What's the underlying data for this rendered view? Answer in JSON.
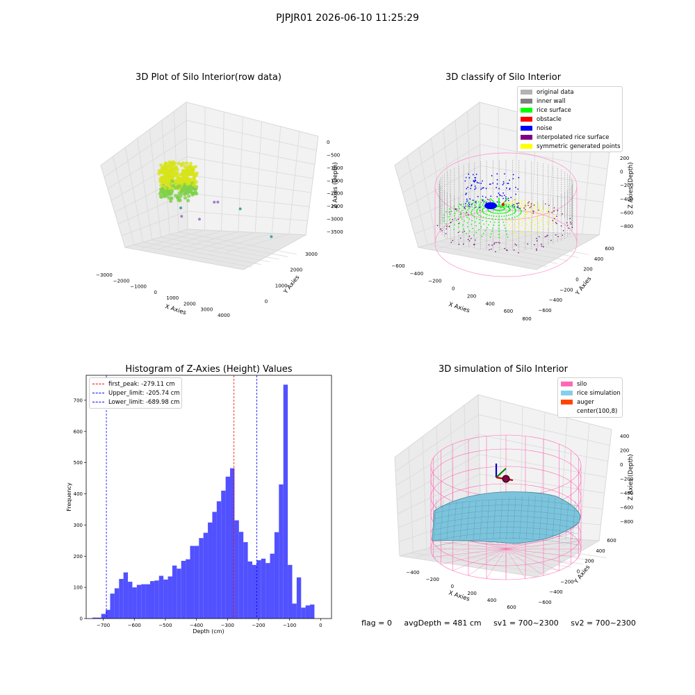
{
  "suptitle": "PJPJR01 2026-06-10 11:25:29",
  "footer": {
    "flag": "flag = 0",
    "avg_depth": "avgDepth = 481 cm",
    "sv1": "sv1 = 700~2300",
    "sv2": "sv2 = 700~2300"
  },
  "chart_data": [
    {
      "type": "scatter",
      "title": "3D Plot of Silo Interior(row data)",
      "xlabel": "X Axies",
      "ylabel": "Y Axies",
      "zlabel": "Z Axies (Depth)",
      "x_ticks": [
        "−3000",
        "−2000",
        "−1000",
        "0",
        "1000",
        "2000",
        "3000",
        "4000"
      ],
      "y_ticks": [
        "0",
        "1000",
        "2000",
        "3000"
      ],
      "z_ticks": [
        "0",
        "−500",
        "−1000",
        "−1500",
        "−2000",
        "−2500",
        "−3000",
        "−3500"
      ],
      "colors": {
        "cluster": "#d7e31a",
        "cluster_low": "#7fd14a",
        "outlier_1": "#a37fc9",
        "outlier_2": "#3fa7a0"
      },
      "outliers": [
        {
          "x": 100,
          "y": 2800,
          "z": -2400
        },
        {
          "x": 300,
          "y": 3000,
          "z": -2100
        },
        {
          "x": -2300,
          "y": 0,
          "z": -3200
        },
        {
          "x": 2700,
          "y": 600,
          "z": -3400
        },
        {
          "x": 800,
          "y": 1800,
          "z": -2200
        },
        {
          "x": 1600,
          "y": 1200,
          "z": -2500
        },
        {
          "x": 2000,
          "y": 2600,
          "z": -1900
        }
      ]
    },
    {
      "type": "scatter",
      "title": "3D classify of Silo Interior",
      "xlabel": "X Axies",
      "ylabel": "Y Axies",
      "zlabel": "Z Axies (Depth)",
      "x_ticks": [
        "−600",
        "−400",
        "−200",
        "0",
        "200",
        "400",
        "600",
        "800"
      ],
      "y_ticks": [
        "−600",
        "−400",
        "−200",
        "0",
        "200",
        "400",
        "600"
      ],
      "z_ticks": [
        "200",
        "0",
        "−200",
        "−400",
        "−600",
        "−800"
      ],
      "legend": [
        {
          "label": "original data",
          "color": "#b3b3b3"
        },
        {
          "label": "inner wall",
          "color": "#808080"
        },
        {
          "label": "rice surface",
          "color": "#00ff00"
        },
        {
          "label": "obstacle",
          "color": "#ff0000"
        },
        {
          "label": "noise",
          "color": "#0000ff"
        },
        {
          "label": "interpolated rice surface",
          "color": "#800080"
        },
        {
          "label": "symmetric generated points",
          "color": "#ffff00"
        }
      ],
      "cylinder_color": "#ff8ec8"
    },
    {
      "type": "bar",
      "title": "Histogram of Z-Axies (Height) Values",
      "xlabel": "Depth (cm)",
      "ylabel": "Frequency",
      "xlim": [
        -755,
        35
      ],
      "ylim": [
        0,
        780
      ],
      "x_ticks": [
        -700,
        -600,
        -500,
        -400,
        -300,
        -200,
        -100,
        0
      ],
      "y_ticks": [
        0,
        100,
        200,
        300,
        400,
        500,
        600,
        700
      ],
      "bin_start": -735,
      "bin_width": 14.3,
      "values": [
        3,
        3,
        15,
        28,
        80,
        97,
        127,
        148,
        118,
        100,
        108,
        110,
        110,
        120,
        122,
        137,
        125,
        135,
        170,
        160,
        185,
        190,
        233,
        233,
        258,
        275,
        308,
        342,
        376,
        410,
        455,
        482,
        315,
        278,
        245,
        183,
        172,
        187,
        192,
        178,
        208,
        277,
        430,
        750,
        172,
        48,
        132,
        35,
        42,
        45
      ],
      "bar_color": "#5151ff",
      "lines": [
        {
          "label": "first_peak: -279.11 cm",
          "value": -279.11,
          "color": "#ff0000"
        },
        {
          "label": "Upper_limit: -205.74 cm",
          "value": -205.74,
          "color": "#0000ff"
        },
        {
          "label": "Lower_limit: -689.98 cm",
          "value": -689.98,
          "color": "#0000ff"
        }
      ]
    },
    {
      "type": "area",
      "title": "3D simulation of Silo Interior",
      "xlabel": "X Axies",
      "ylabel": "Y Axies",
      "zlabel": "Z Axies (Depth)",
      "x_ticks": [
        "−400",
        "−200",
        "0",
        "200",
        "400",
        "600"
      ],
      "y_ticks": [
        "−600",
        "−400",
        "−200",
        "0",
        "200",
        "400",
        "600"
      ],
      "z_ticks": [
        "400",
        "200",
        "0",
        "−200",
        "−400",
        "−600",
        "−800"
      ],
      "legend": [
        {
          "label": "silo",
          "color": "#ff69b4"
        },
        {
          "label": "rice simulation",
          "color": "#87ceeb"
        },
        {
          "label": "auger",
          "color": "#ff4500"
        },
        {
          "label": "center(100,8)",
          "color": ""
        }
      ]
    }
  ]
}
